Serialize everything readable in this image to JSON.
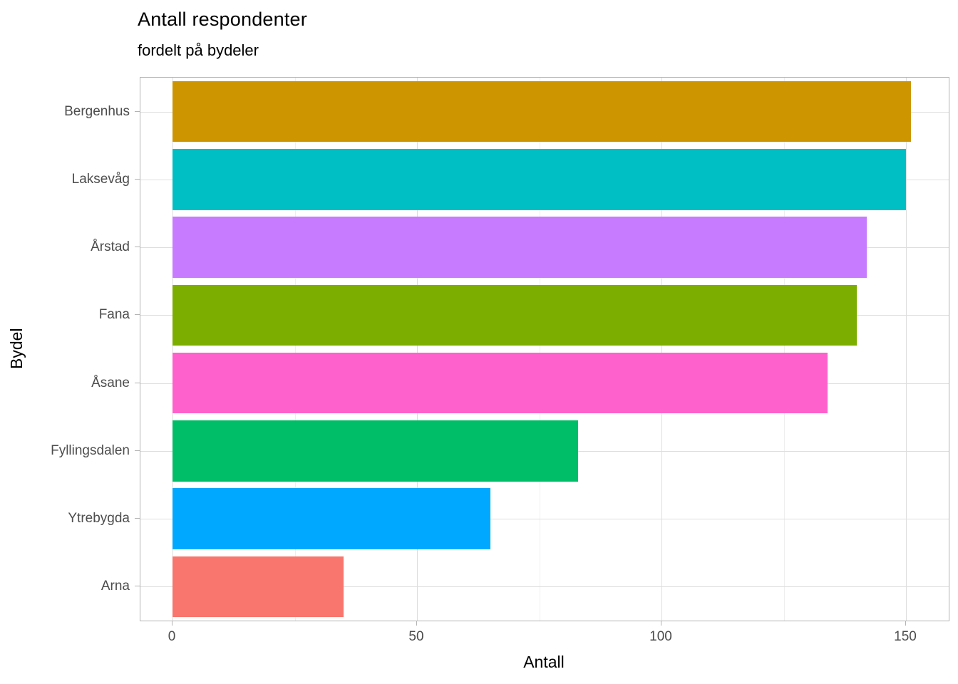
{
  "chart_data": {
    "type": "bar",
    "orientation": "horizontal",
    "title": "Antall respondenter",
    "subtitle": "fordelt på bydeler",
    "xlabel": "Antall",
    "ylabel": "Bydel",
    "categories": [
      "Bergenhus",
      "Laksevåg",
      "Årstad",
      "Fana",
      "Åsane",
      "Fyllingsdalen",
      "Ytrebygda",
      "Arna"
    ],
    "values": [
      151,
      150,
      142,
      140,
      134,
      83,
      65,
      35
    ],
    "colors": [
      "#CD9600",
      "#00BFC4",
      "#C77CFF",
      "#7CAE00",
      "#FF61CC",
      "#00BE67",
      "#00A9FF",
      "#F8766D"
    ],
    "xlim": [
      -7.5,
      158.5
    ],
    "x_ticks": [
      0,
      50,
      100,
      150
    ],
    "x_minor_ticks": [
      25,
      75,
      125
    ],
    "grid": true,
    "legend": false,
    "bar_width_fraction": 0.9
  },
  "style_colors": {
    "panel_border": "#b3b3b3",
    "grid_major": "#dedede",
    "grid_minor": "#efefef",
    "tick_label": "#4d4d4d",
    "axis_title": "#000000"
  }
}
